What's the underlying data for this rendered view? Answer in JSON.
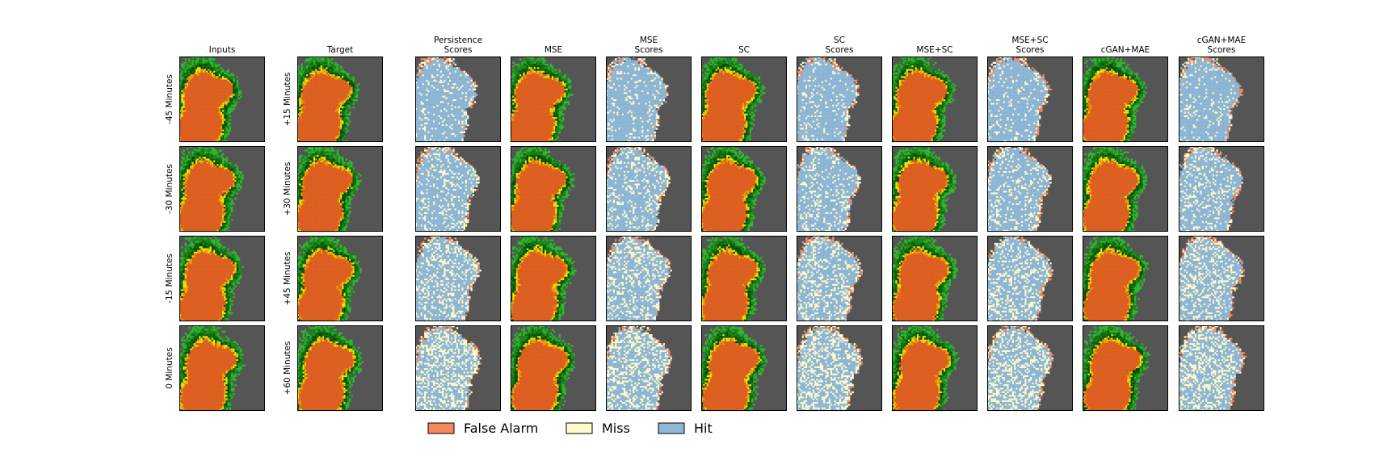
{
  "chart_data": {
    "type": "heatmap",
    "columns": [
      {
        "key": "inputs",
        "title_lines": [
          "Inputs"
        ],
        "kind": "field",
        "seed": 11
      },
      {
        "key": "target",
        "title_lines": [
          "Target"
        ],
        "kind": "field",
        "seed": 23
      },
      {
        "key": "persistence_scores",
        "title_lines": [
          "Persistence",
          "Scores"
        ],
        "kind": "score",
        "seed": 37
      },
      {
        "key": "mse",
        "title_lines": [
          "MSE"
        ],
        "kind": "field",
        "seed": 41
      },
      {
        "key": "mse_scores",
        "title_lines": [
          "MSE",
          "Scores"
        ],
        "kind": "score",
        "seed": 53
      },
      {
        "key": "sc",
        "title_lines": [
          "SC"
        ],
        "kind": "field",
        "seed": 61
      },
      {
        "key": "sc_scores",
        "title_lines": [
          "SC",
          "Scores"
        ],
        "kind": "score",
        "seed": 71
      },
      {
        "key": "mse_sc",
        "title_lines": [
          "MSE+SC"
        ],
        "kind": "field",
        "seed": 83
      },
      {
        "key": "mse_sc_scores",
        "title_lines": [
          "MSE+SC",
          "Scores"
        ],
        "kind": "score",
        "seed": 97
      },
      {
        "key": "cgan_mae",
        "title_lines": [
          "cGAN+MAE"
        ],
        "kind": "field",
        "seed": 101
      },
      {
        "key": "cgan_mae_scores",
        "title_lines": [
          "cGAN+MAE",
          "Scores"
        ],
        "kind": "score",
        "seed": 113
      }
    ],
    "input_row_labels": [
      "-45 Minutes",
      "-30 Minutes",
      "-15 Minutes",
      "0 Minutes"
    ],
    "target_row_labels": [
      "+15 Minutes",
      "+30 Minutes",
      "+45 Minutes",
      "+60 Minutes"
    ],
    "legend": [
      {
        "label": "False Alarm",
        "color": "#f4895f"
      },
      {
        "label": "Miss",
        "color": "#fffbcc"
      },
      {
        "label": "Hit",
        "color": "#8fb8d8"
      }
    ],
    "colors": {
      "background": "#555555",
      "field_levels": [
        "#2db82d",
        "#1a8c1a",
        "#0f6b0f",
        "#064f06",
        "#e8e800",
        "#f0a000",
        "#e06020"
      ],
      "false_alarm": "#f4895f",
      "miss": "#fffbcc",
      "hit": "#8fb8d8"
    }
  }
}
